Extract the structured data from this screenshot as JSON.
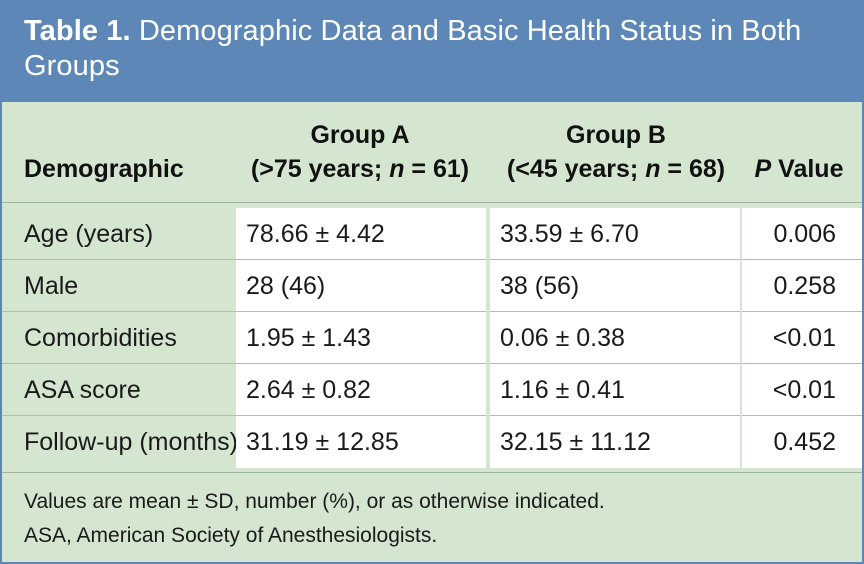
{
  "title": {
    "label": "Table 1.",
    "text": "Demographic Data and Basic Health Status in Both Groups"
  },
  "columns": {
    "demographic": "Demographic",
    "group_a_name": "Group A",
    "group_a_detail": "(>75 years; n = 61)",
    "group_b_name": "Group B",
    "group_b_detail": "(<45 years; n = 68)",
    "p_value": "P Value"
  },
  "rows": [
    {
      "demographic": "Age (years)",
      "group_a": "78.66 ± 4.42",
      "group_b": "33.59 ± 6.70",
      "p": "0.006"
    },
    {
      "demographic": "Male",
      "group_a": "28 (46)",
      "group_b": "38 (56)",
      "p": "0.258"
    },
    {
      "demographic": "Comorbidities",
      "group_a": "1.95 ± 1.43",
      "group_b": "0.06 ± 0.38",
      "p": "<0.01"
    },
    {
      "demographic": "ASA score",
      "group_a": "2.64 ± 0.82",
      "group_b": "1.16 ± 0.41",
      "p": "<0.01"
    },
    {
      "demographic": "Follow-up (months)",
      "group_a": "31.19 ± 12.85",
      "group_b": "32.15 ± 11.12",
      "p": "0.452"
    }
  ],
  "footnotes": [
    "Values are mean ± SD, number (%), or as otherwise indicated.",
    "ASA, American Society of Anesthesiologists."
  ],
  "colors": {
    "title_bar": "#5d87b6",
    "header_bg": "#d4e6d0",
    "cell_bg": "#ffffff"
  }
}
